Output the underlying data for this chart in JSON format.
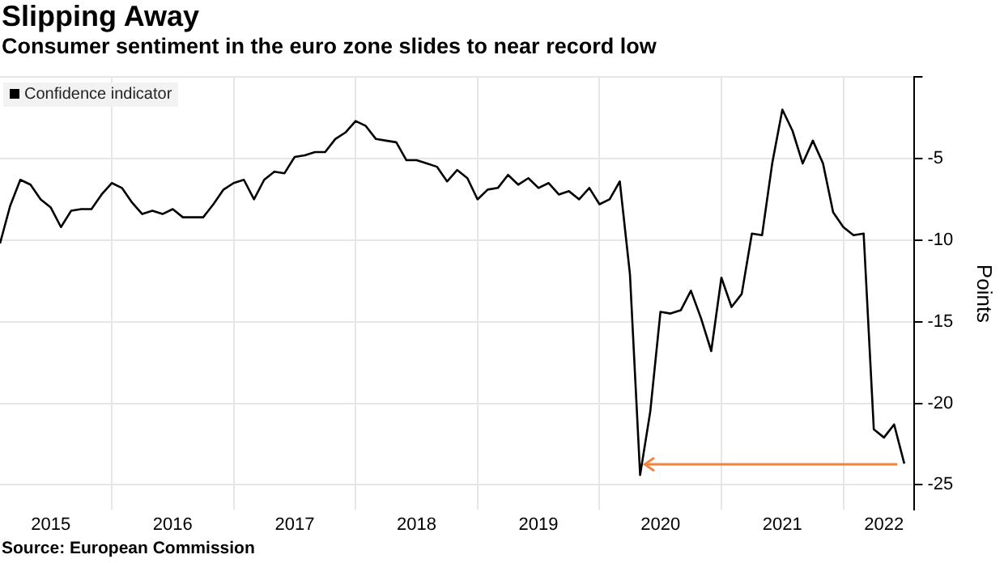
{
  "chart_data": {
    "type": "line",
    "title": "Slipping Away",
    "subtitle": "Consumer sentiment in the euro zone slides to near record low",
    "ylabel": "Points",
    "annotations": [
      "Source: European Commission"
    ],
    "x": [
      "2015-02",
      "2015-03",
      "2015-04",
      "2015-05",
      "2015-06",
      "2015-07",
      "2015-08",
      "2015-09",
      "2015-10",
      "2015-11",
      "2015-12",
      "2016-01",
      "2016-02",
      "2016-03",
      "2016-04",
      "2016-05",
      "2016-06",
      "2016-07",
      "2016-08",
      "2016-09",
      "2016-10",
      "2016-11",
      "2016-12",
      "2017-01",
      "2017-02",
      "2017-03",
      "2017-04",
      "2017-05",
      "2017-06",
      "2017-07",
      "2017-08",
      "2017-09",
      "2017-10",
      "2017-11",
      "2017-12",
      "2018-01",
      "2018-02",
      "2018-03",
      "2018-04",
      "2018-05",
      "2018-06",
      "2018-07",
      "2018-08",
      "2018-09",
      "2018-10",
      "2018-11",
      "2018-12",
      "2019-01",
      "2019-02",
      "2019-03",
      "2019-04",
      "2019-05",
      "2019-06",
      "2019-07",
      "2019-08",
      "2019-09",
      "2019-10",
      "2019-11",
      "2019-12",
      "2020-01",
      "2020-02",
      "2020-03",
      "2020-04",
      "2020-05",
      "2020-06",
      "2020-07",
      "2020-08",
      "2020-09",
      "2020-10",
      "2020-11",
      "2020-12",
      "2021-01",
      "2021-02",
      "2021-03",
      "2021-04",
      "2021-05",
      "2021-06",
      "2021-07",
      "2021-08",
      "2021-09",
      "2021-10",
      "2021-11",
      "2021-12",
      "2022-01",
      "2022-02",
      "2022-03",
      "2022-04",
      "2022-05",
      "2022-06",
      "2022-07"
    ],
    "series": [
      {
        "name": "Confidence indicator",
        "color": "#000000",
        "values": [
          -10.2,
          -7.9,
          -6.3,
          -6.6,
          -7.5,
          -8.0,
          -9.2,
          -8.2,
          -8.1,
          -8.1,
          -7.2,
          -6.5,
          -6.8,
          -7.7,
          -8.4,
          -8.2,
          -8.4,
          -8.1,
          -8.6,
          -8.6,
          -8.6,
          -7.8,
          -6.9,
          -6.5,
          -6.3,
          -7.5,
          -6.3,
          -5.8,
          -5.9,
          -4.9,
          -4.8,
          -4.6,
          -4.6,
          -3.8,
          -3.4,
          -2.7,
          -3.0,
          -3.8,
          -3.9,
          -4.0,
          -5.1,
          -5.1,
          -5.3,
          -5.5,
          -6.4,
          -5.7,
          -6.2,
          -7.5,
          -6.9,
          -6.8,
          -6.0,
          -6.6,
          -6.2,
          -6.8,
          -6.5,
          -7.2,
          -7.0,
          -7.5,
          -6.8,
          -7.8,
          -7.5,
          -6.4,
          -12.1,
          -24.4,
          -20.5,
          -14.4,
          -14.5,
          -14.3,
          -13.1,
          -14.8,
          -16.8,
          -12.3,
          -14.1,
          -13.3,
          -9.6,
          -9.7,
          -5.3,
          -2.0,
          -3.3,
          -5.3,
          -3.9,
          -5.3,
          -8.3,
          -9.2,
          -9.7,
          -9.6,
          -21.6,
          -22.1,
          -21.3,
          -23.7
        ]
      }
    ],
    "xlim": [
      "2015-02",
      "2022-08"
    ],
    "xticks": [
      {
        "value": "2015-07",
        "label": "2015"
      },
      {
        "value": "2016-01",
        "label": null
      },
      {
        "value": "2016-07",
        "label": "2016"
      },
      {
        "value": "2017-01",
        "label": null
      },
      {
        "value": "2017-07",
        "label": "2017"
      },
      {
        "value": "2018-01",
        "label": null
      },
      {
        "value": "2018-07",
        "label": "2018"
      },
      {
        "value": "2019-01",
        "label": null
      },
      {
        "value": "2019-07",
        "label": "2019"
      },
      {
        "value": "2020-01",
        "label": null
      },
      {
        "value": "2020-07",
        "label": "2020"
      },
      {
        "value": "2021-01",
        "label": null
      },
      {
        "value": "2021-07",
        "label": "2021"
      },
      {
        "value": "2022-01",
        "label": null
      },
      {
        "value": "2022-05",
        "label": "2022"
      }
    ],
    "ylim": [
      -26.5,
      0
    ],
    "yticks": [
      {
        "value": 0,
        "label": null
      },
      -5,
      -10,
      -15,
      -20,
      -25
    ],
    "grid": true,
    "legend": "top left",
    "line_style": "solid"
  }
}
